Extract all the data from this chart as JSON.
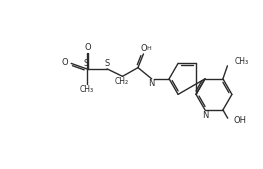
{
  "bg": "#ffffff",
  "lc": "#2a2a2a",
  "lw": 1.0,
  "fs": 6.0,
  "figsize": [
    2.63,
    1.69
  ],
  "dpi": 100,
  "xlim": [
    0,
    10.5
  ],
  "ylim": [
    0,
    6.4
  ]
}
